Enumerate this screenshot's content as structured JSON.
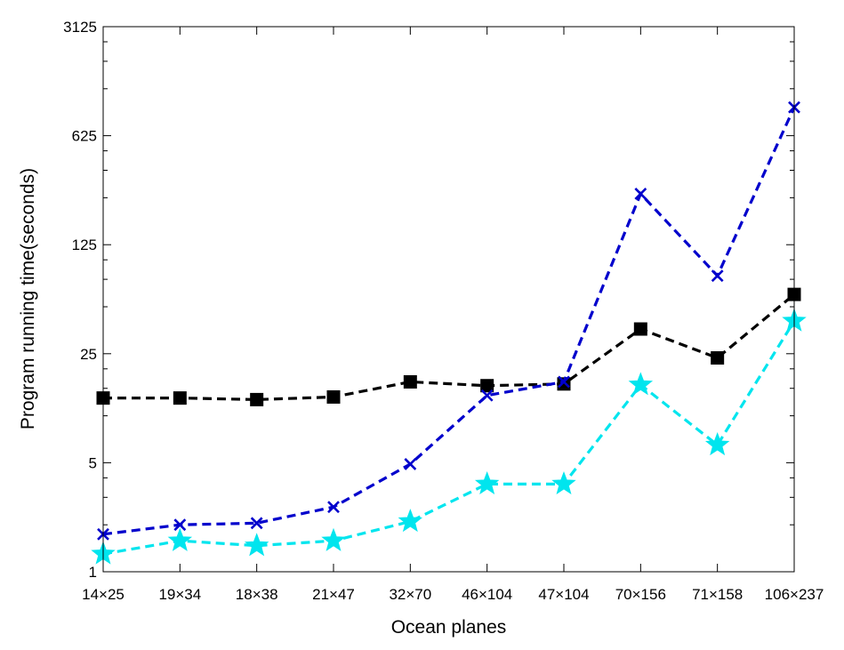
{
  "chart_data": {
    "type": "line",
    "title": "",
    "xlabel": "Ocean planes",
    "ylabel": "Program running time(seconds)",
    "yscale": "log",
    "ylim": [
      1,
      3125
    ],
    "yticks": [
      1,
      5,
      25,
      125,
      625,
      3125
    ],
    "ytick_labels": [
      "1",
      "5",
      "25",
      "125",
      "625",
      "3125"
    ],
    "grid": false,
    "legend": "none",
    "categories": [
      "14×25",
      "19×34",
      "18×38",
      "21×47",
      "32×70",
      "46×104",
      "47×104",
      "70×156",
      "71×158",
      "106×237"
    ],
    "series": [
      {
        "marker": "square",
        "color": "#000000",
        "line_style": "dashed",
        "values": [
          13.0,
          13.0,
          12.7,
          13.2,
          16.5,
          15.6,
          16.0,
          36.0,
          23.5,
          60.0
        ]
      },
      {
        "marker": "x",
        "color": "#0000cc",
        "line_style": "dashed",
        "values": [
          1.74,
          2.0,
          2.05,
          2.6,
          4.9,
          13.5,
          16.5,
          265,
          79,
          950
        ]
      },
      {
        "marker": "star",
        "color": "#00e5ee",
        "line_style": "dashed",
        "values": [
          1.3,
          1.58,
          1.47,
          1.58,
          2.1,
          3.65,
          3.65,
          15.8,
          6.5,
          40.5
        ]
      }
    ]
  }
}
